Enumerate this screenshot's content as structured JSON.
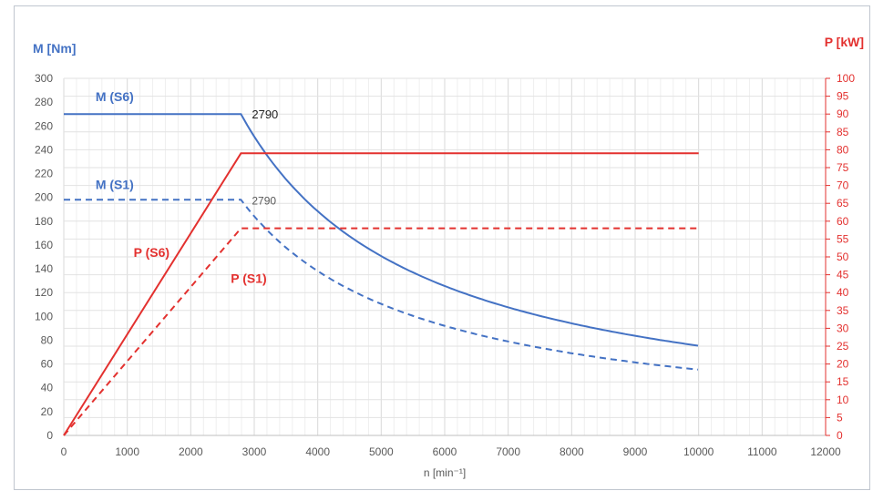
{
  "chart_data": {
    "type": "line",
    "xlabel": "n [min⁻¹]",
    "ylabel_left": "M [Nm]",
    "ylabel_right": "P [kW]",
    "xlim": [
      0,
      12000
    ],
    "ylim_left": [
      0,
      300
    ],
    "ylim_right": [
      0,
      100
    ],
    "x_ticks": [
      0,
      1000,
      2000,
      3000,
      4000,
      5000,
      6000,
      7000,
      8000,
      9000,
      10000,
      11000,
      12000
    ],
    "y_left_ticks": [
      0,
      20,
      40,
      60,
      80,
      100,
      120,
      140,
      160,
      180,
      200,
      220,
      240,
      260,
      280,
      300
    ],
    "y_right_ticks": [
      0,
      5,
      10,
      15,
      20,
      25,
      30,
      35,
      40,
      45,
      50,
      55,
      60,
      65,
      70,
      75,
      80,
      85,
      90,
      95,
      100
    ],
    "grid": true,
    "series": [
      {
        "name": "M (S6)",
        "axis": "left",
        "color": "#4472c4",
        "style": "solid",
        "points": [
          [
            0,
            270
          ],
          [
            2790,
            270
          ],
          [
            3000,
            251
          ],
          [
            3500,
            215
          ],
          [
            4000,
            188
          ],
          [
            4500,
            167
          ],
          [
            5000,
            151
          ],
          [
            6000,
            126
          ],
          [
            7000,
            108
          ],
          [
            8000,
            94
          ],
          [
            9000,
            84
          ],
          [
            10000,
            75
          ]
        ]
      },
      {
        "name": "M (S1)",
        "axis": "left",
        "color": "#4472c4",
        "style": "dashed",
        "points": [
          [
            0,
            198
          ],
          [
            2790,
            198
          ],
          [
            3000,
            184
          ],
          [
            3500,
            158
          ],
          [
            4000,
            138
          ],
          [
            4500,
            123
          ],
          [
            5000,
            111
          ],
          [
            6000,
            92
          ],
          [
            7000,
            79
          ],
          [
            8000,
            69
          ],
          [
            9000,
            61
          ],
          [
            10000,
            55
          ]
        ]
      },
      {
        "name": "P (S6)",
        "axis": "right",
        "color": "#e3312f",
        "style": "solid",
        "points": [
          [
            0,
            0
          ],
          [
            2790,
            79
          ],
          [
            10000,
            79
          ]
        ]
      },
      {
        "name": "P (S1)",
        "axis": "right",
        "color": "#e3312f",
        "style": "dashed",
        "points": [
          [
            0,
            0
          ],
          [
            2790,
            58
          ],
          [
            10000,
            58
          ]
        ]
      }
    ],
    "annotations": [
      {
        "text": "2790",
        "x": 2790,
        "y": 270,
        "axis": "left",
        "emphasis": "strong"
      },
      {
        "text": "2790",
        "x": 2790,
        "y": 198,
        "axis": "left",
        "emphasis": "light"
      }
    ],
    "series_label_placement": [
      {
        "text": "M (S6)",
        "x": 500,
        "y": 281,
        "axis": "left",
        "color": "#4472c4"
      },
      {
        "text": "M (S1)",
        "x": 500,
        "y": 207,
        "axis": "left",
        "color": "#4472c4"
      },
      {
        "text": "P (S6)",
        "x": 1100,
        "y": 150,
        "axis": "left",
        "color": "#e3312f"
      },
      {
        "text": "P (S1)",
        "x": 2630,
        "y": 128,
        "axis": "left",
        "color": "#e3312f"
      }
    ]
  }
}
